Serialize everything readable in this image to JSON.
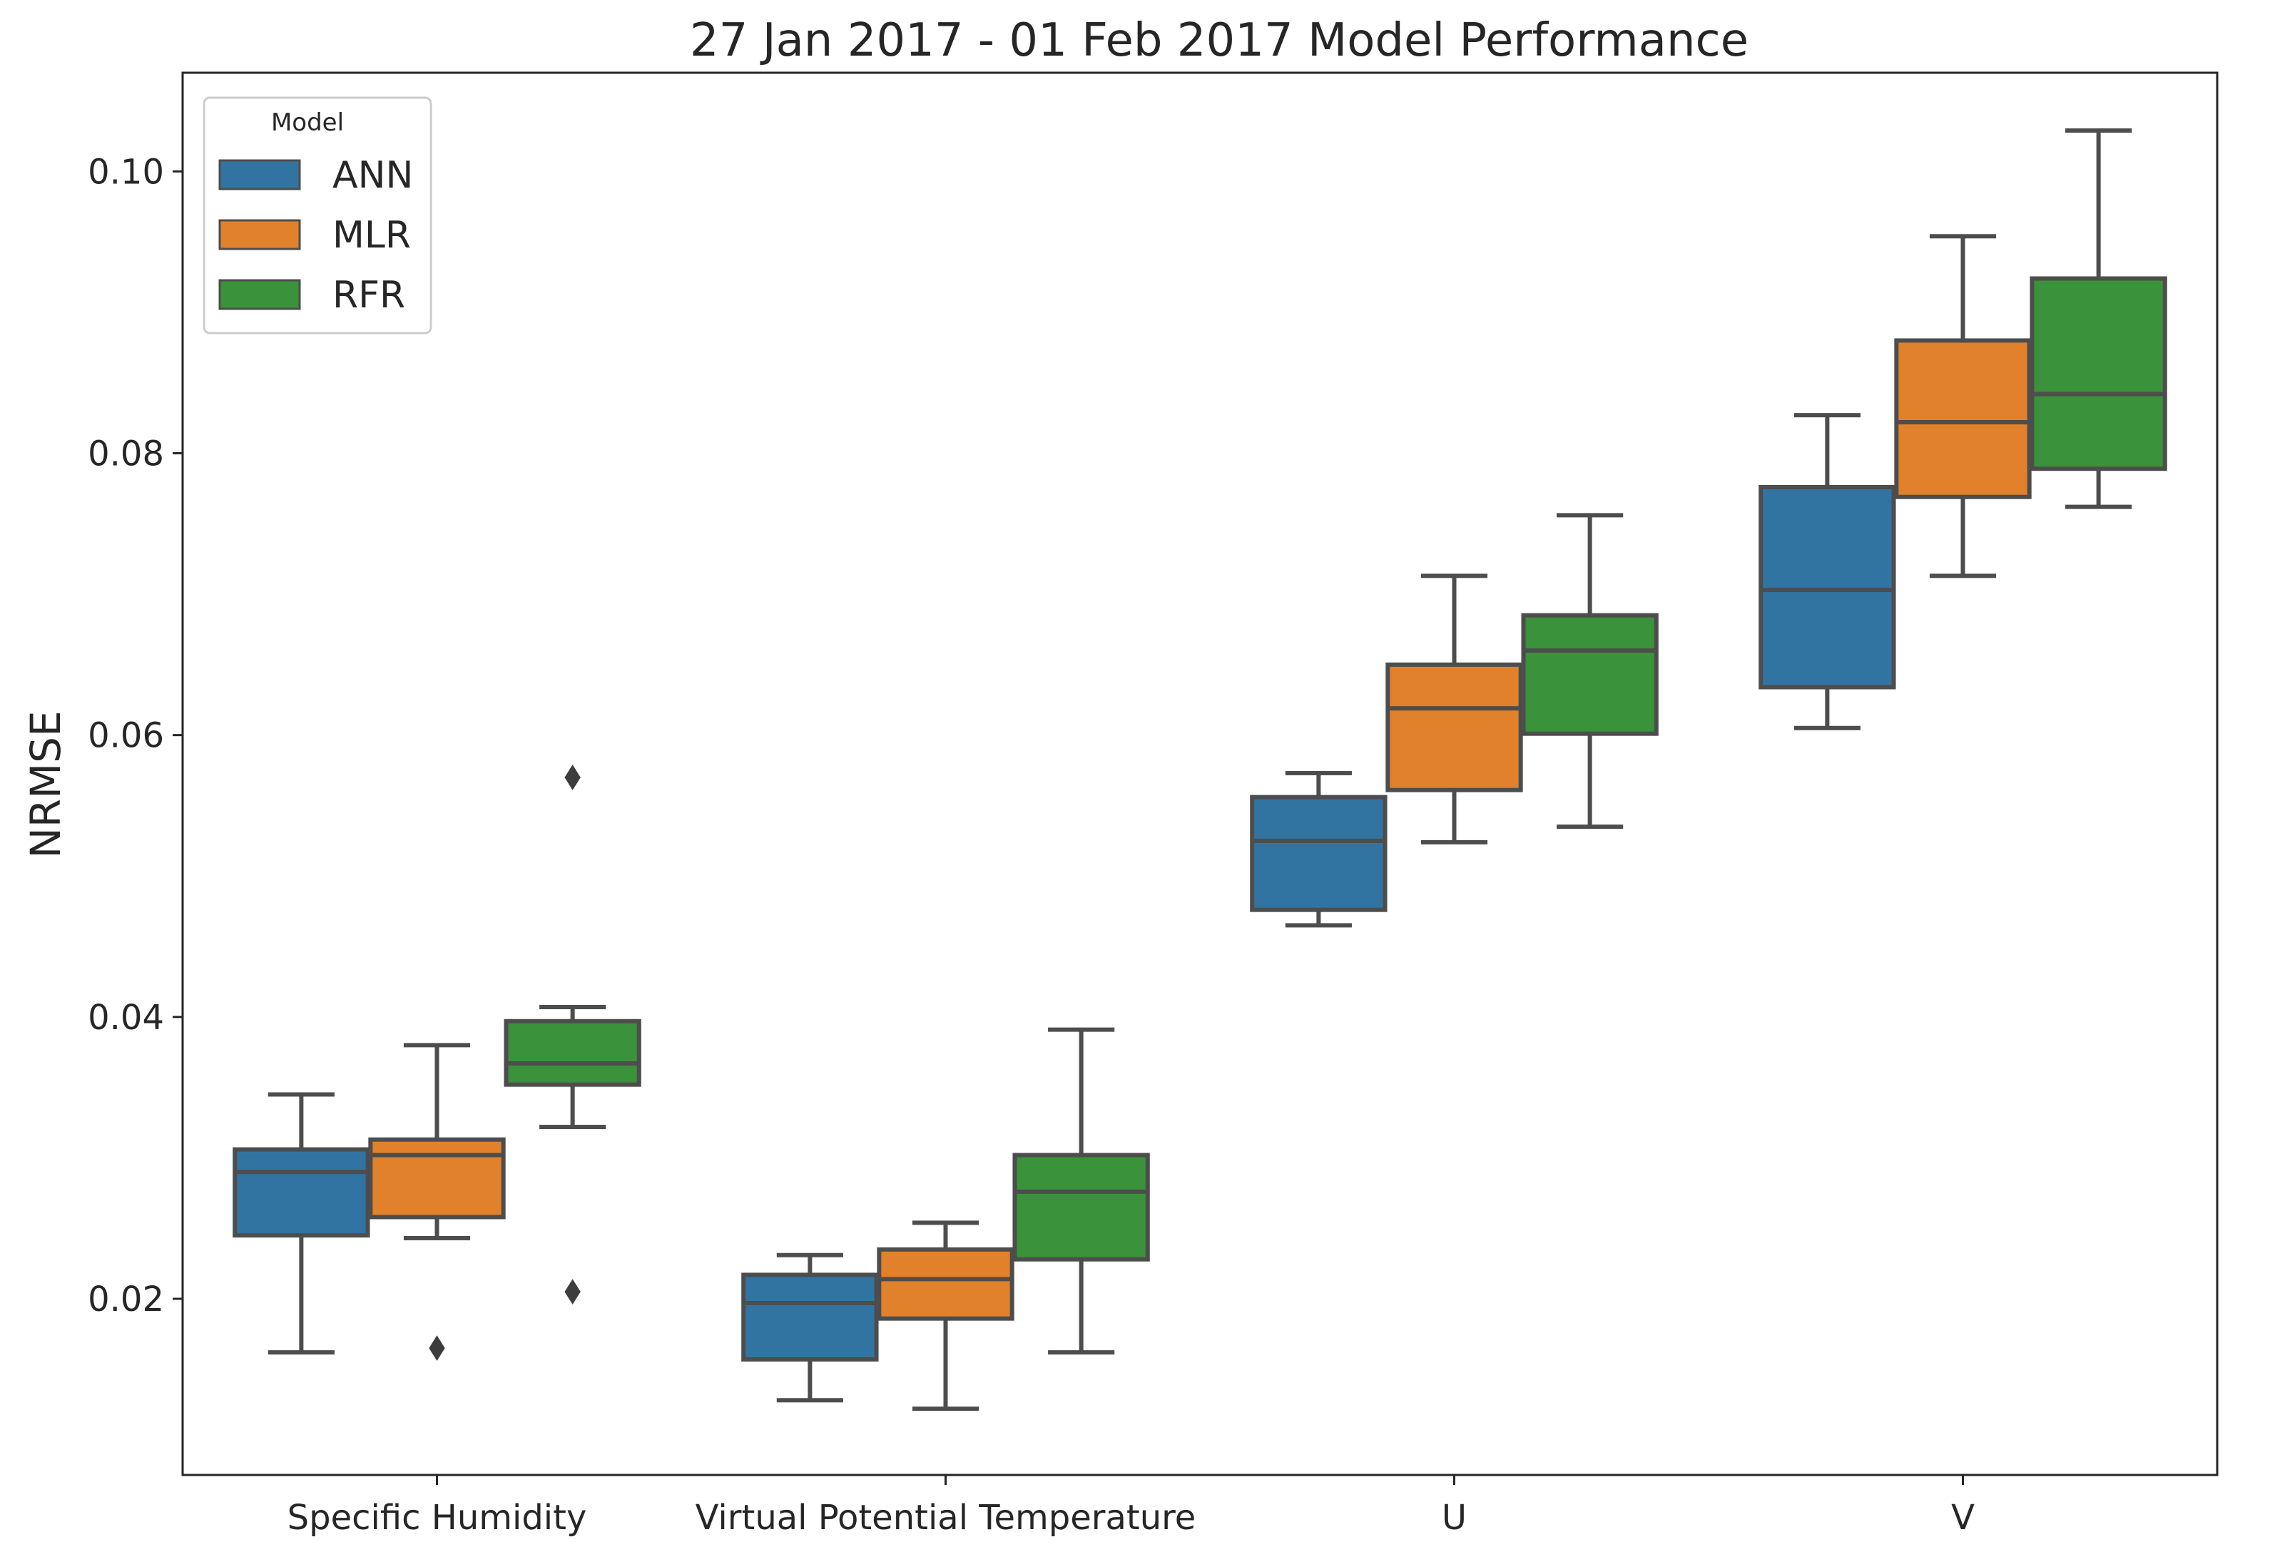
{
  "chart_data": {
    "type": "boxplot",
    "title": "27 Jan 2017 - 01 Feb 2017 Model Performance",
    "xlabel": "",
    "ylabel": "NRMSE",
    "ylim": [
      0.0075,
      0.107
    ],
    "yticks": [
      "0.02",
      "0.04",
      "0.06",
      "0.08",
      "0.10"
    ],
    "ytick_values": [
      0.02,
      0.04,
      0.06,
      0.08,
      0.1
    ],
    "categories": [
      "Specific Humidity",
      "Virtual Potential Temperature",
      "U",
      "V"
    ],
    "grid": false,
    "legend": {
      "title": "Model",
      "placement": "top-left",
      "entries": [
        "ANN",
        "MLR",
        "RFR"
      ]
    },
    "series": [
      {
        "name": "ANN",
        "color": "#3274a1",
        "boxes": [
          {
            "category": "Specific Humidity",
            "whisker_low": 0.0162,
            "q1": 0.0245,
            "median": 0.029,
            "q3": 0.0306,
            "whisker_high": 0.0345,
            "outliers": []
          },
          {
            "category": "Virtual Potential Temperature",
            "whisker_low": 0.0128,
            "q1": 0.0157,
            "median": 0.0197,
            "q3": 0.0217,
            "whisker_high": 0.0231,
            "outliers": []
          },
          {
            "category": "U",
            "whisker_low": 0.0465,
            "q1": 0.0476,
            "median": 0.0525,
            "q3": 0.0556,
            "whisker_high": 0.0573,
            "outliers": []
          },
          {
            "category": "V",
            "whisker_low": 0.0605,
            "q1": 0.0634,
            "median": 0.0703,
            "q3": 0.0776,
            "whisker_high": 0.0827,
            "outliers": []
          }
        ]
      },
      {
        "name": "MLR",
        "color": "#e1812c",
        "boxes": [
          {
            "category": "Specific Humidity",
            "whisker_low": 0.0243,
            "q1": 0.0258,
            "median": 0.0302,
            "q3": 0.0313,
            "whisker_high": 0.038,
            "outliers": [
              0.0165
            ]
          },
          {
            "category": "Virtual Potential Temperature",
            "whisker_low": 0.0122,
            "q1": 0.0186,
            "median": 0.0214,
            "q3": 0.0235,
            "whisker_high": 0.0254,
            "outliers": []
          },
          {
            "category": "U",
            "whisker_low": 0.0524,
            "q1": 0.0561,
            "median": 0.0619,
            "q3": 0.065,
            "whisker_high": 0.0713,
            "outliers": []
          },
          {
            "category": "V",
            "whisker_low": 0.0713,
            "q1": 0.0769,
            "median": 0.0822,
            "q3": 0.088,
            "whisker_high": 0.0954,
            "outliers": []
          }
        ]
      },
      {
        "name": "RFR",
        "color": "#3a923a",
        "boxes": [
          {
            "category": "Specific Humidity",
            "whisker_low": 0.0322,
            "q1": 0.0352,
            "median": 0.0367,
            "q3": 0.0397,
            "whisker_high": 0.0407,
            "outliers": [
              0.057,
              0.0205
            ]
          },
          {
            "category": "Virtual Potential Temperature",
            "whisker_low": 0.0162,
            "q1": 0.0228,
            "median": 0.0276,
            "q3": 0.0302,
            "whisker_high": 0.0391,
            "outliers": []
          },
          {
            "category": "U",
            "whisker_low": 0.0535,
            "q1": 0.0601,
            "median": 0.066,
            "q3": 0.0685,
            "whisker_high": 0.0756,
            "outliers": []
          },
          {
            "category": "V",
            "whisker_low": 0.0762,
            "q1": 0.0789,
            "median": 0.0842,
            "q3": 0.0924,
            "whisker_high": 0.1029,
            "outliers": []
          }
        ]
      }
    ]
  },
  "colors": {
    "box_edge": "#4d4d4d",
    "axes_edge": "#262626",
    "text": "#262626",
    "legend_edge": "#cccccc"
  }
}
